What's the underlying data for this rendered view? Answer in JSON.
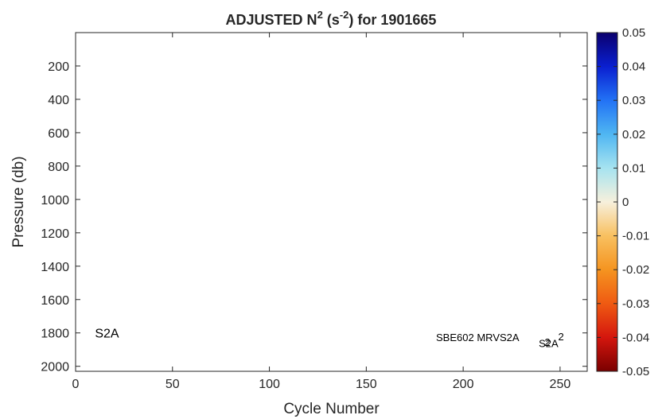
{
  "chart_data": {
    "type": "heatmap",
    "title": {
      "prefix": "ADJUSTED N",
      "sup1": "2",
      "mid": " (s",
      "sup2": "-2",
      "suffix": ") for 1901665"
    },
    "xlabel": "Cycle Number",
    "ylabel": "Pressure (db)",
    "xlim": [
      0,
      264
    ],
    "ylim": [
      2030,
      0
    ],
    "y_reversed": true,
    "xticks": [
      0,
      50,
      100,
      150,
      200,
      250
    ],
    "yticks": [
      200,
      400,
      600,
      800,
      1000,
      1200,
      1400,
      1600,
      1800,
      2000
    ],
    "colorbar": {
      "min": -0.05,
      "max": 0.05,
      "ticks": [
        "0.05",
        "0.04",
        "0.03",
        "0.02",
        "0.01",
        "0",
        "-0.01",
        "-0.02",
        "-0.03",
        "-0.04",
        "-0.05"
      ],
      "colormap_stops": [
        "#0b006e",
        "#0a1fd0",
        "#2272f5",
        "#4fb6f2",
        "#a6e3f0",
        "#f7f0dc",
        "#f8c060",
        "#f59420",
        "#ef5a12",
        "#d4160e",
        "#7a0000"
      ]
    },
    "values": [],
    "annotations": [
      {
        "text": "S2A",
        "x": 10,
        "y": 1800,
        "size": "large"
      },
      {
        "text": "SBE602 MRVS2A",
        "x": 186,
        "y": 1820,
        "size": "small"
      },
      {
        "text": "2",
        "x": 249,
        "y": 1815,
        "size": "small"
      },
      {
        "text": "S2A",
        "x": 239,
        "y": 1855,
        "size": "small"
      },
      {
        "text": "2",
        "x": 242,
        "y": 1850,
        "size": "small"
      }
    ]
  }
}
